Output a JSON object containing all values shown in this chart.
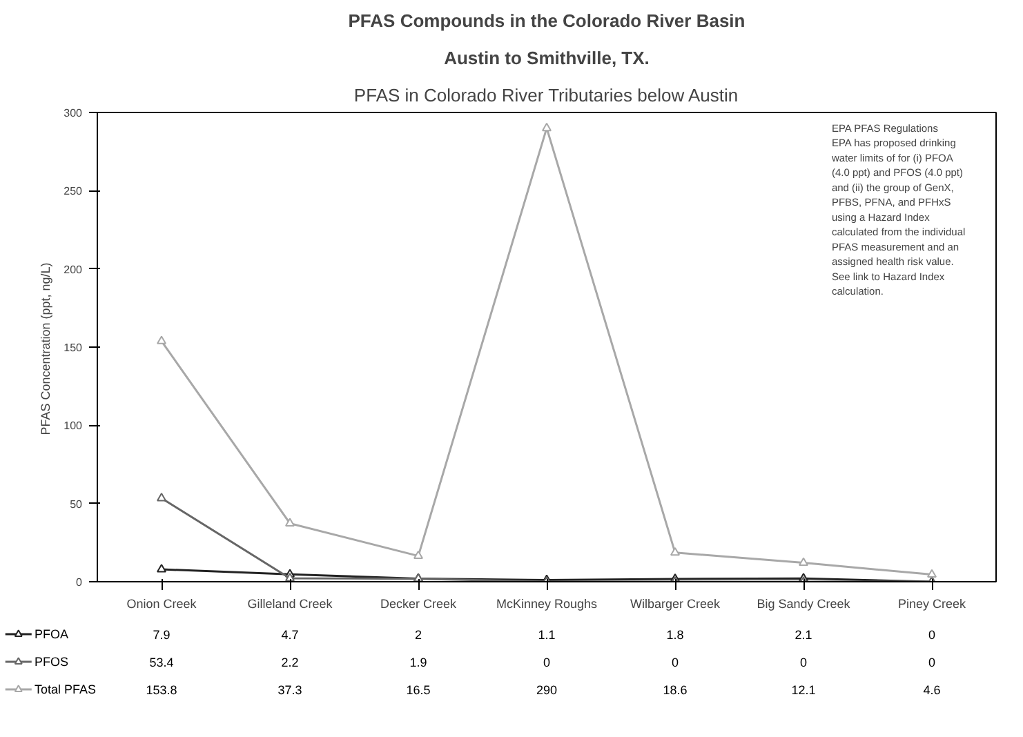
{
  "chart_data": {
    "type": "line",
    "title": "PFAS Compounds in the Colorado River Basin",
    "subtitle": "Austin to Smithville, TX.",
    "ylabel": "PFAS Concentration  (ppt, ng/L)",
    "annotations": [
      "PFAS in Colorado River Tributaries below Austin",
      "EPA PFAS Regulations\nEPA has proposed drinking\nwater limits of for (i) PFOA\n(4.0 ppt) and PFOS (4.0 ppt)\nand (ii) the group of GenX,\nPFBS, PFNA, and PFHxS\nusing a Hazard Index\ncalculated from the individual\nPFAS measurement and an\nassigned health risk value.\nSee link to Hazard Index\ncalculation."
    ],
    "categories": [
      "Onion Creek",
      "Gilleland Creek",
      "Decker Creek",
      "McKinney Roughs",
      "Wilbarger Creek",
      "Big Sandy Creek",
      "Piney Creek"
    ],
    "series": [
      {
        "name": "PFOA",
        "color": "#222222",
        "values": [
          7.9,
          4.7,
          2,
          1.1,
          1.8,
          2.1,
          0
        ]
      },
      {
        "name": "PFOS",
        "color": "#666666",
        "values": [
          53.4,
          2.2,
          1.9,
          0,
          0,
          0,
          0
        ]
      },
      {
        "name": "Total PFAS",
        "color": "#a8a8a8",
        "values": [
          153.8,
          37.3,
          16.5,
          290,
          18.6,
          12.1,
          4.6
        ]
      }
    ],
    "ylim": [
      0,
      300
    ],
    "yticks": [
      0,
      50,
      100,
      150,
      200,
      250,
      300
    ],
    "grid": false,
    "legend": "bottom",
    "data_labels": true,
    "marker": "triangle",
    "line_style": "solid"
  }
}
